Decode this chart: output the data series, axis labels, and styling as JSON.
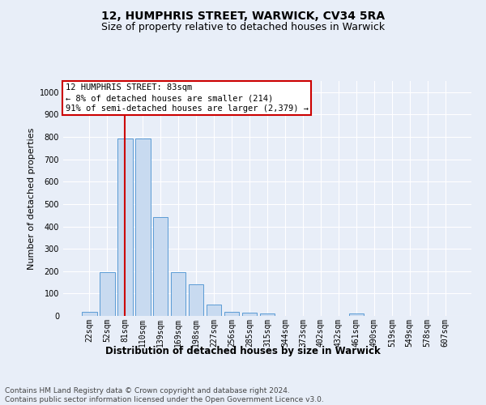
{
  "title_line1": "12, HUMPHRIS STREET, WARWICK, CV34 5RA",
  "title_line2": "Size of property relative to detached houses in Warwick",
  "xlabel": "Distribution of detached houses by size in Warwick",
  "ylabel": "Number of detached properties",
  "bar_labels": [
    "22sqm",
    "52sqm",
    "81sqm",
    "110sqm",
    "139sqm",
    "169sqm",
    "198sqm",
    "227sqm",
    "256sqm",
    "285sqm",
    "315sqm",
    "344sqm",
    "373sqm",
    "402sqm",
    "432sqm",
    "461sqm",
    "490sqm",
    "519sqm",
    "549sqm",
    "578sqm",
    "607sqm"
  ],
  "bar_values": [
    18,
    197,
    793,
    793,
    441,
    197,
    142,
    50,
    18,
    13,
    11,
    0,
    0,
    0,
    0,
    10,
    0,
    0,
    0,
    0,
    0
  ],
  "bar_color": "#c8daf0",
  "bar_edge_color": "#5b9bd5",
  "vline_x": 2,
  "vline_color": "#cc0000",
  "annotation_text": "12 HUMPHRIS STREET: 83sqm\n← 8% of detached houses are smaller (214)\n91% of semi-detached houses are larger (2,379) →",
  "annotation_box_edge": "#cc0000",
  "annotation_box_face": "#ffffff",
  "ylim": [
    0,
    1050
  ],
  "yticks": [
    0,
    100,
    200,
    300,
    400,
    500,
    600,
    700,
    800,
    900,
    1000
  ],
  "footer_text": "Contains HM Land Registry data © Crown copyright and database right 2024.\nContains public sector information licensed under the Open Government Licence v3.0.",
  "background_color": "#e8eef8",
  "plot_background": "#e8eef8",
  "grid_color": "#ffffff",
  "title1_fontsize": 10,
  "title2_fontsize": 9,
  "xlabel_fontsize": 8.5,
  "ylabel_fontsize": 8,
  "tick_fontsize": 7,
  "annotation_fontsize": 7.5,
  "footer_fontsize": 6.5
}
